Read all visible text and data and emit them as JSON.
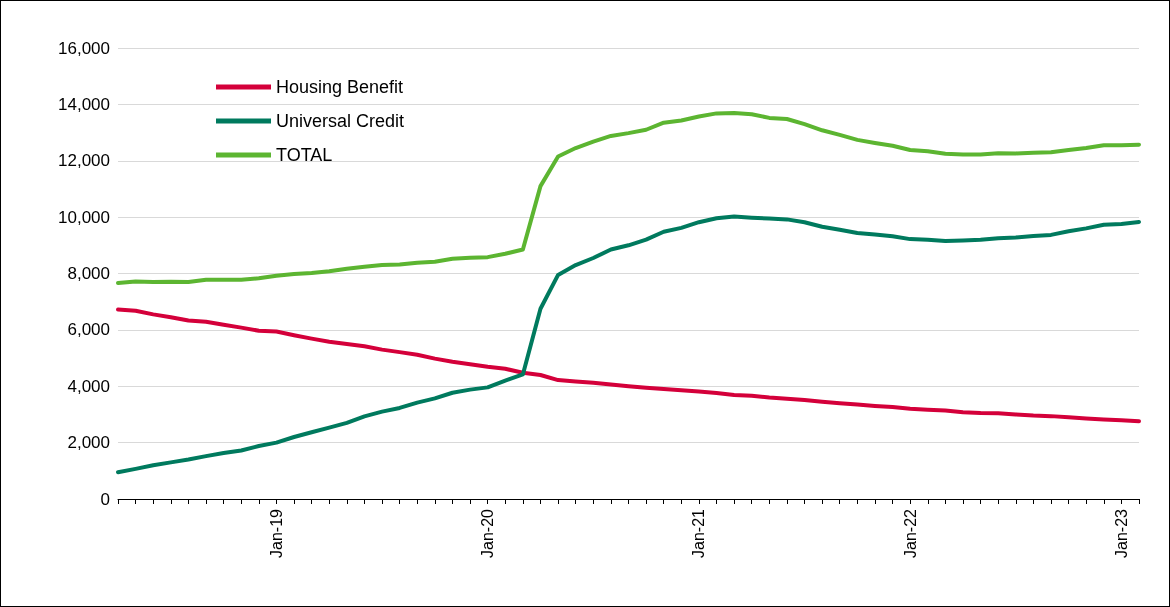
{
  "chart_data": {
    "type": "line",
    "categories": [
      null,
      null,
      null,
      null,
      null,
      null,
      null,
      null,
      null,
      "Jan-19",
      null,
      null,
      null,
      null,
      null,
      null,
      null,
      null,
      null,
      null,
      null,
      "Jan-20",
      null,
      null,
      null,
      null,
      null,
      null,
      null,
      null,
      null,
      null,
      null,
      "Jan-21",
      null,
      null,
      null,
      null,
      null,
      null,
      null,
      null,
      null,
      null,
      null,
      "Jan-22",
      null,
      null,
      null,
      null,
      null,
      null,
      null,
      null,
      null,
      null,
      null,
      "Jan-23",
      null
    ],
    "series": [
      {
        "name": "Housing Benefit",
        "color": "#d4003a",
        "values": [
          6720,
          6680,
          6550,
          6450,
          6330,
          6290,
          6180,
          6080,
          5970,
          5940,
          5810,
          5690,
          5580,
          5500,
          5420,
          5300,
          5210,
          5120,
          4980,
          4870,
          4780,
          4690,
          4620,
          4480,
          4400,
          4220,
          4170,
          4120,
          4060,
          4000,
          3950,
          3900,
          3860,
          3810,
          3760,
          3690,
          3660,
          3600,
          3560,
          3510,
          3450,
          3400,
          3350,
          3300,
          3260,
          3200,
          3170,
          3140,
          3080,
          3050,
          3040,
          3000,
          2960,
          2940,
          2900,
          2860,
          2820,
          2790,
          2760
        ]
      },
      {
        "name": "Universal Credit",
        "color": "#007a5e",
        "values": [
          950,
          1070,
          1200,
          1300,
          1400,
          1520,
          1630,
          1720,
          1880,
          2000,
          2200,
          2370,
          2530,
          2700,
          2930,
          3100,
          3230,
          3420,
          3570,
          3770,
          3880,
          3960,
          4200,
          4420,
          6750,
          7950,
          8300,
          8550,
          8850,
          9000,
          9200,
          9480,
          9620,
          9820,
          9960,
          10020,
          9980,
          9950,
          9920,
          9820,
          9660,
          9550,
          9440,
          9380,
          9320,
          9220,
          9200,
          9150,
          9170,
          9200,
          9250,
          9280,
          9330,
          9370,
          9500,
          9600,
          9730,
          9760,
          9830
        ]
      },
      {
        "name": "TOTAL",
        "color": "#5cb531",
        "values": [
          7660,
          7720,
          7700,
          7710,
          7700,
          7780,
          7780,
          7780,
          7830,
          7920,
          7980,
          8020,
          8080,
          8170,
          8240,
          8300,
          8320,
          8380,
          8420,
          8520,
          8560,
          8580,
          8700,
          8850,
          11100,
          12150,
          12450,
          12680,
          12880,
          12980,
          13100,
          13350,
          13430,
          13570,
          13680,
          13690,
          13650,
          13520,
          13480,
          13300,
          13080,
          12920,
          12740,
          12630,
          12530,
          12380,
          12340,
          12250,
          12220,
          12220,
          12270,
          12260,
          12280,
          12300,
          12380,
          12450,
          12550,
          12550,
          12570
        ]
      }
    ],
    "ylim": [
      0,
      16000
    ],
    "yticks": [
      0,
      {
        "value": 2000,
        "label": "2,000"
      },
      {
        "value": 4000,
        "label": "4,000"
      },
      {
        "value": 6000,
        "label": "6,000"
      },
      {
        "value": 8000,
        "label": "8,000"
      },
      {
        "value": 10000,
        "label": "10,000"
      },
      {
        "value": 12000,
        "label": "12,000"
      },
      {
        "value": 14000,
        "label": "14,000"
      },
      {
        "value": 16000,
        "label": "16,000"
      }
    ],
    "grid": "y",
    "legend": "top left",
    "marker": "none",
    "line_style": "solid"
  }
}
